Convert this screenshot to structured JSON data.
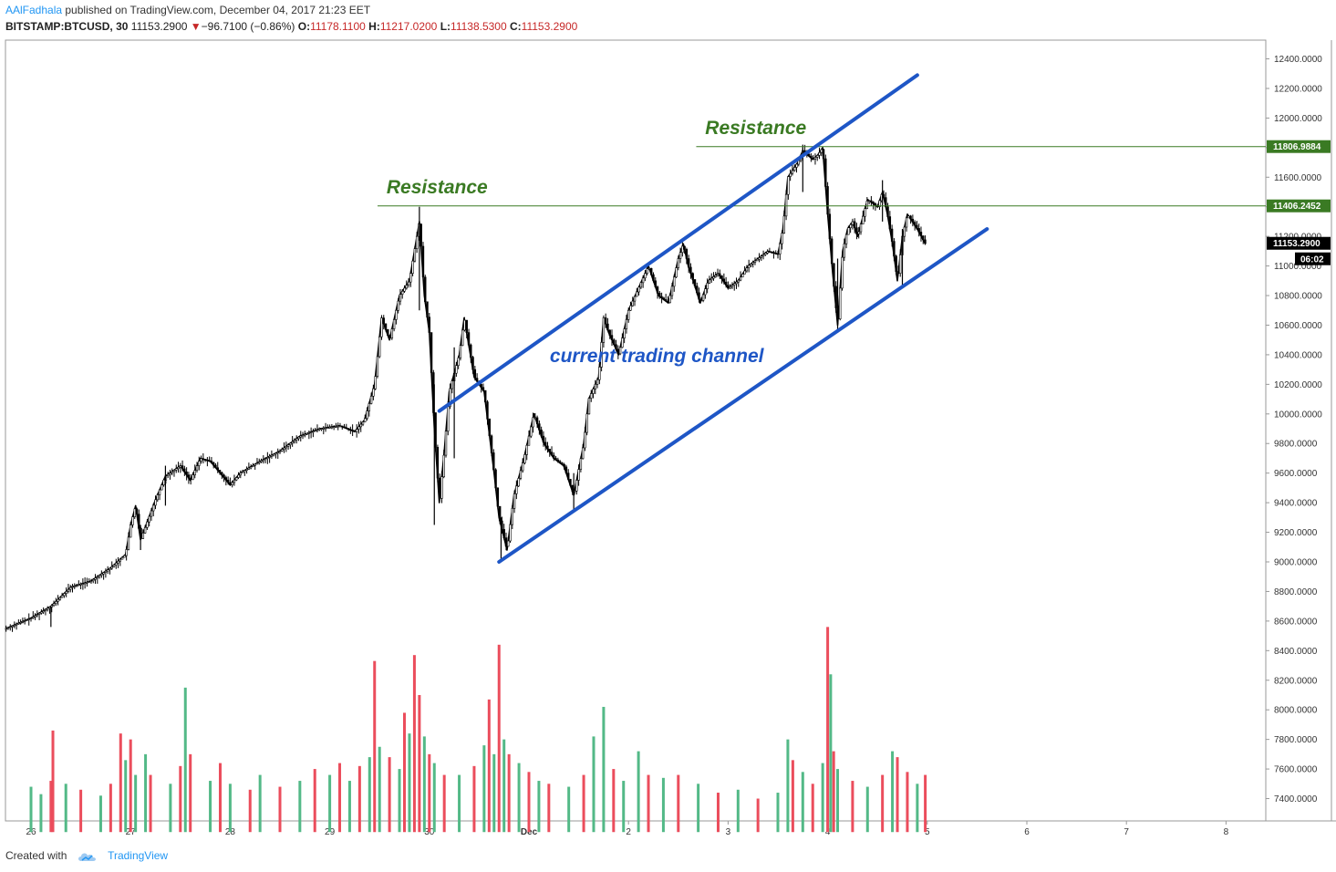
{
  "header": {
    "author": "AAlFadhala",
    "published": " published on TradingView.com, December 04, 2017 21:23 EET",
    "symbol": "BITSTAMP:BTCUSD, 30",
    "last": "11153.2900",
    "change": "−96.7100 (−0.86%)",
    "o_label": "O:",
    "o_value": "11178.1100",
    "h_label": "H:",
    "h_value": "11217.0200",
    "l_label": "L:",
    "l_value": "11138.5300",
    "c_label": "C:",
    "c_value": "11153.2900"
  },
  "footer": {
    "created": "Created with",
    "brand": "TradingView"
  },
  "chart_data": {
    "type": "candlestick",
    "price_ticks": [
      "12400.0000",
      "12200.0000",
      "12000.0000",
      "11800.0000",
      "11600.0000",
      "11400.0000",
      "11200.0000",
      "11000.0000",
      "10800.0000",
      "10600.0000",
      "10400.0000",
      "10200.0000",
      "10000.0000",
      "9800.0000",
      "9600.0000",
      "9400.0000",
      "9200.0000",
      "9000.0000",
      "8800.0000",
      "8600.0000",
      "8400.0000",
      "8200.0000",
      "8000.0000",
      "7800.0000",
      "7600.0000",
      "7400.0000"
    ],
    "price_tick_values": [
      12400,
      12200,
      12000,
      11800,
      11600,
      11400,
      11200,
      11000,
      10800,
      10600,
      10400,
      10200,
      10000,
      9800,
      9600,
      9400,
      9200,
      9000,
      8800,
      8600,
      8400,
      8200,
      8000,
      7800,
      7600,
      7400
    ],
    "date_ticks": [
      "26",
      "27",
      "28",
      "29",
      "30",
      "Dec",
      "2",
      "3",
      "4",
      "5",
      "6",
      "7",
      "8"
    ],
    "date_tick_days": [
      0,
      1,
      2,
      3,
      4,
      5,
      6,
      7,
      8,
      9,
      10,
      11,
      12
    ],
    "horizontal_levels": [
      {
        "value": 11806.9884,
        "label": "11806.9884",
        "start_day": 6.68
      },
      {
        "value": 11406.2452,
        "label": "11406.2452",
        "start_day": 3.48
      }
    ],
    "current_price": {
      "value": 11153.29,
      "label": "11153.2900",
      "countdown": "06:02"
    },
    "channel_lines": [
      {
        "name": "upper",
        "from": {
          "day": 4.1,
          "price": 10020
        },
        "to": {
          "day": 8.9,
          "price": 12290
        }
      },
      {
        "name": "lower",
        "from": {
          "day": 4.7,
          "price": 9000
        },
        "to": {
          "day": 9.6,
          "price": 11250
        }
      }
    ],
    "annotations": [
      {
        "text": "Resistance",
        "day": 3.57,
        "price": 11490,
        "type": "resistance"
      },
      {
        "text": "Resistance",
        "day": 6.77,
        "price": 11890,
        "type": "resistance"
      },
      {
        "text": "current trading channel",
        "day": 5.21,
        "price": 10350,
        "type": "channel"
      }
    ],
    "price_path": [
      [
        -0.25,
        8550
      ],
      [
        0,
        8620
      ],
      [
        0.2,
        8700
      ],
      [
        0.4,
        8830
      ],
      [
        0.6,
        8870
      ],
      [
        0.8,
        8960
      ],
      [
        0.95,
        9050
      ],
      [
        1.0,
        9250
      ],
      [
        1.05,
        9380
      ],
      [
        1.1,
        9150
      ],
      [
        1.25,
        9420
      ],
      [
        1.35,
        9580
      ],
      [
        1.5,
        9650
      ],
      [
        1.6,
        9550
      ],
      [
        1.7,
        9700
      ],
      [
        1.8,
        9680
      ],
      [
        1.9,
        9600
      ],
      [
        2.0,
        9520
      ],
      [
        2.1,
        9600
      ],
      [
        2.3,
        9680
      ],
      [
        2.5,
        9750
      ],
      [
        2.7,
        9850
      ],
      [
        2.9,
        9900
      ],
      [
        3.1,
        9920
      ],
      [
        3.25,
        9880
      ],
      [
        3.35,
        9960
      ],
      [
        3.45,
        10200
      ],
      [
        3.52,
        10650
      ],
      [
        3.6,
        10500
      ],
      [
        3.7,
        10800
      ],
      [
        3.8,
        10900
      ],
      [
        3.85,
        11100
      ],
      [
        3.9,
        11300
      ],
      [
        3.95,
        10800
      ],
      [
        4.0,
        10550
      ],
      [
        4.05,
        9900
      ],
      [
        4.1,
        9400
      ],
      [
        4.15,
        9750
      ],
      [
        4.2,
        10150
      ],
      [
        4.3,
        10400
      ],
      [
        4.35,
        10650
      ],
      [
        4.45,
        10250
      ],
      [
        4.55,
        10150
      ],
      [
        4.65,
        9600
      ],
      [
        4.7,
        9300
      ],
      [
        4.78,
        9080
      ],
      [
        4.85,
        9450
      ],
      [
        4.95,
        9700
      ],
      [
        5.05,
        10000
      ],
      [
        5.15,
        9800
      ],
      [
        5.25,
        9700
      ],
      [
        5.35,
        9650
      ],
      [
        5.45,
        9450
      ],
      [
        5.55,
        9800
      ],
      [
        5.6,
        10100
      ],
      [
        5.7,
        10250
      ],
      [
        5.75,
        10650
      ],
      [
        5.8,
        10550
      ],
      [
        5.9,
        10400
      ],
      [
        6.0,
        10700
      ],
      [
        6.1,
        10850
      ],
      [
        6.2,
        11000
      ],
      [
        6.3,
        10800
      ],
      [
        6.4,
        10750
      ],
      [
        6.5,
        11050
      ],
      [
        6.55,
        11150
      ],
      [
        6.6,
        11000
      ],
      [
        6.65,
        10900
      ],
      [
        6.72,
        10750
      ],
      [
        6.8,
        10900
      ],
      [
        6.9,
        10950
      ],
      [
        7.0,
        10850
      ],
      [
        7.1,
        10900
      ],
      [
        7.2,
        11000
      ],
      [
        7.3,
        11050
      ],
      [
        7.4,
        11100
      ],
      [
        7.5,
        11080
      ],
      [
        7.55,
        11250
      ],
      [
        7.6,
        11600
      ],
      [
        7.7,
        11700
      ],
      [
        7.75,
        11780
      ],
      [
        7.85,
        11720
      ],
      [
        7.9,
        11750
      ],
      [
        7.95,
        11800
      ],
      [
        8.0,
        11350
      ],
      [
        8.05,
        10950
      ],
      [
        8.1,
        10600
      ],
      [
        8.15,
        11100
      ],
      [
        8.2,
        11250
      ],
      [
        8.25,
        11300
      ],
      [
        8.3,
        11200
      ],
      [
        8.4,
        11450
      ],
      [
        8.5,
        11400
      ],
      [
        8.55,
        11500
      ],
      [
        8.6,
        11350
      ],
      [
        8.65,
        11150
      ],
      [
        8.7,
        10900
      ],
      [
        8.75,
        11200
      ],
      [
        8.8,
        11350
      ],
      [
        8.9,
        11250
      ],
      [
        8.98,
        11150
      ]
    ],
    "wicks": [
      [
        0.2,
        8560,
        8700
      ],
      [
        1.1,
        9080,
        9250
      ],
      [
        1.35,
        9380,
        9650
      ],
      [
        3.9,
        10700,
        11400
      ],
      [
        4.05,
        9250,
        10200
      ],
      [
        4.25,
        9700,
        10450
      ],
      [
        4.72,
        9020,
        9300
      ],
      [
        5.45,
        9350,
        9600
      ],
      [
        7.75,
        11500,
        11820
      ],
      [
        8.1,
        10550,
        11050
      ],
      [
        8.55,
        11300,
        11580
      ],
      [
        8.75,
        10850,
        11250
      ]
    ],
    "volume_scale": 8600,
    "volume_baseline": 7260,
    "volume": [
      [
        0.0,
        7480,
        "up"
      ],
      [
        0.1,
        7430,
        "up"
      ],
      [
        0.2,
        7520,
        "dn"
      ],
      [
        0.22,
        7860,
        "dn"
      ],
      [
        0.35,
        7500,
        "up"
      ],
      [
        0.5,
        7460,
        "dn"
      ],
      [
        0.7,
        7420,
        "up"
      ],
      [
        0.8,
        7500,
        "dn"
      ],
      [
        0.9,
        7840,
        "dn"
      ],
      [
        0.95,
        7660,
        "up"
      ],
      [
        1.0,
        7800,
        "dn"
      ],
      [
        1.05,
        7560,
        "up"
      ],
      [
        1.15,
        7700,
        "up"
      ],
      [
        1.2,
        7560,
        "dn"
      ],
      [
        1.4,
        7500,
        "up"
      ],
      [
        1.5,
        7620,
        "dn"
      ],
      [
        1.55,
        8150,
        "up"
      ],
      [
        1.6,
        7700,
        "dn"
      ],
      [
        1.8,
        7520,
        "up"
      ],
      [
        1.9,
        7640,
        "dn"
      ],
      [
        2.0,
        7500,
        "up"
      ],
      [
        2.2,
        7460,
        "dn"
      ],
      [
        2.3,
        7560,
        "up"
      ],
      [
        2.5,
        7480,
        "dn"
      ],
      [
        2.7,
        7520,
        "up"
      ],
      [
        2.85,
        7600,
        "dn"
      ],
      [
        3.0,
        7560,
        "up"
      ],
      [
        3.1,
        7640,
        "dn"
      ],
      [
        3.2,
        7520,
        "up"
      ],
      [
        3.3,
        7620,
        "dn"
      ],
      [
        3.4,
        7680,
        "up"
      ],
      [
        3.45,
        8330,
        "dn"
      ],
      [
        3.5,
        7750,
        "up"
      ],
      [
        3.6,
        7680,
        "dn"
      ],
      [
        3.7,
        7600,
        "up"
      ],
      [
        3.75,
        7980,
        "dn"
      ],
      [
        3.8,
        7840,
        "up"
      ],
      [
        3.85,
        8370,
        "dn"
      ],
      [
        3.9,
        8100,
        "dn"
      ],
      [
        3.95,
        7820,
        "up"
      ],
      [
        4.0,
        7700,
        "dn"
      ],
      [
        4.05,
        7640,
        "up"
      ],
      [
        4.15,
        7560,
        "dn"
      ],
      [
        4.3,
        7560,
        "up"
      ],
      [
        4.45,
        7620,
        "dn"
      ],
      [
        4.55,
        7760,
        "up"
      ],
      [
        4.6,
        8070,
        "dn"
      ],
      [
        4.65,
        7700,
        "up"
      ],
      [
        4.7,
        8440,
        "dn"
      ],
      [
        4.75,
        7800,
        "up"
      ],
      [
        4.8,
        7700,
        "dn"
      ],
      [
        4.9,
        7640,
        "up"
      ],
      [
        5.0,
        7580,
        "dn"
      ],
      [
        5.1,
        7520,
        "up"
      ],
      [
        5.2,
        7500,
        "dn"
      ],
      [
        5.4,
        7480,
        "up"
      ],
      [
        5.55,
        7560,
        "dn"
      ],
      [
        5.65,
        7820,
        "up"
      ],
      [
        5.75,
        8020,
        "up"
      ],
      [
        5.85,
        7600,
        "dn"
      ],
      [
        5.95,
        7520,
        "up"
      ],
      [
        6.1,
        7720,
        "up"
      ],
      [
        6.2,
        7560,
        "dn"
      ],
      [
        6.35,
        7540,
        "up"
      ],
      [
        6.5,
        7560,
        "dn"
      ],
      [
        6.7,
        7500,
        "up"
      ],
      [
        6.9,
        7440,
        "dn"
      ],
      [
        7.1,
        7460,
        "up"
      ],
      [
        7.3,
        7400,
        "dn"
      ],
      [
        7.5,
        7440,
        "up"
      ],
      [
        7.6,
        7800,
        "up"
      ],
      [
        7.65,
        7660,
        "dn"
      ],
      [
        7.75,
        7580,
        "up"
      ],
      [
        7.85,
        7500,
        "dn"
      ],
      [
        7.95,
        7640,
        "up"
      ],
      [
        8.0,
        8560,
        "dn"
      ],
      [
        8.03,
        8240,
        "up"
      ],
      [
        8.06,
        7720,
        "dn"
      ],
      [
        8.1,
        7600,
        "up"
      ],
      [
        8.25,
        7520,
        "dn"
      ],
      [
        8.4,
        7480,
        "up"
      ],
      [
        8.55,
        7560,
        "dn"
      ],
      [
        8.65,
        7720,
        "up"
      ],
      [
        8.7,
        7680,
        "dn"
      ],
      [
        8.8,
        7580,
        "dn"
      ],
      [
        8.9,
        7500,
        "up"
      ],
      [
        8.98,
        7560,
        "dn"
      ]
    ]
  },
  "colors": {
    "up": "#53b987",
    "down": "#eb4d5c",
    "candle": "#000000",
    "channel": "#1e56c6",
    "resistance": "#3a7a23",
    "tag_green": "#3a7a23",
    "tag_price": "#000000",
    "axis": "#999999",
    "grid": "#e6e6e6"
  }
}
